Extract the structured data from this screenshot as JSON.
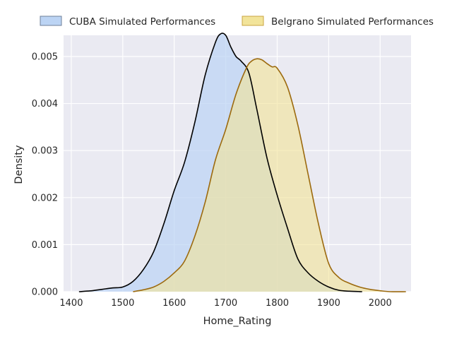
{
  "colors": {
    "background": "#ffffff",
    "plot_background": "#eaeaf2",
    "grid": "#ffffff",
    "text": "#262626"
  },
  "chart_data": {
    "type": "area",
    "title": "",
    "xlabel": "Home_Rating",
    "ylabel": "Density",
    "xlim": [
      1385,
      2060
    ],
    "ylim": [
      0,
      0.00545
    ],
    "xticks": [
      1400,
      1500,
      1600,
      1700,
      1800,
      1900,
      2000
    ],
    "yticks": [
      0.0,
      0.001,
      0.002,
      0.003,
      0.004,
      0.005
    ],
    "xtick_labels": [
      "1400",
      "1500",
      "1600",
      "1700",
      "1800",
      "1900",
      "2000"
    ],
    "ytick_labels": [
      "0.000",
      "0.001",
      "0.002",
      "0.003",
      "0.004",
      "0.005"
    ],
    "grid": true,
    "legend_position": "top-center, above plot",
    "series": [
      {
        "name": "CUBA Simulated Performances",
        "fill_color": "#bcd4f4",
        "line_color": "#000000",
        "x": [
          1415,
          1440,
          1460,
          1480,
          1500,
          1520,
          1540,
          1560,
          1580,
          1600,
          1620,
          1640,
          1660,
          1680,
          1690,
          1700,
          1710,
          1720,
          1730,
          1745,
          1760,
          1780,
          1800,
          1820,
          1840,
          1860,
          1880,
          1900,
          1920,
          1940,
          1965
        ],
        "y": [
          0.0,
          2e-05,
          5e-05,
          8e-05,
          0.0001,
          0.00022,
          0.00047,
          0.00085,
          0.00145,
          0.00215,
          0.00275,
          0.0036,
          0.0046,
          0.0053,
          0.00548,
          0.00545,
          0.0052,
          0.005,
          0.0049,
          0.00465,
          0.0039,
          0.00285,
          0.00205,
          0.00135,
          0.0007,
          0.0004,
          0.00022,
          0.0001,
          3e-05,
          1e-05,
          0.0
        ]
      },
      {
        "name": "Belgrano Simulated Performances",
        "fill_color": "#f2e49a",
        "line_color": "#9c6a0e",
        "x": [
          1520,
          1540,
          1560,
          1580,
          1600,
          1620,
          1640,
          1660,
          1680,
          1700,
          1720,
          1740,
          1750,
          1760,
          1770,
          1780,
          1790,
          1800,
          1820,
          1840,
          1860,
          1880,
          1900,
          1920,
          1940,
          1960,
          1980,
          2000,
          2020,
          2050
        ],
        "y": [
          0.0,
          4e-05,
          0.0001,
          0.00022,
          0.0004,
          0.00065,
          0.00118,
          0.0019,
          0.0028,
          0.00345,
          0.0042,
          0.00475,
          0.0049,
          0.00495,
          0.00493,
          0.00485,
          0.00478,
          0.00475,
          0.00435,
          0.00355,
          0.0025,
          0.00145,
          0.0006,
          0.0003,
          0.00018,
          0.0001,
          5e-05,
          2e-05,
          0.0,
          0.0
        ]
      }
    ]
  }
}
